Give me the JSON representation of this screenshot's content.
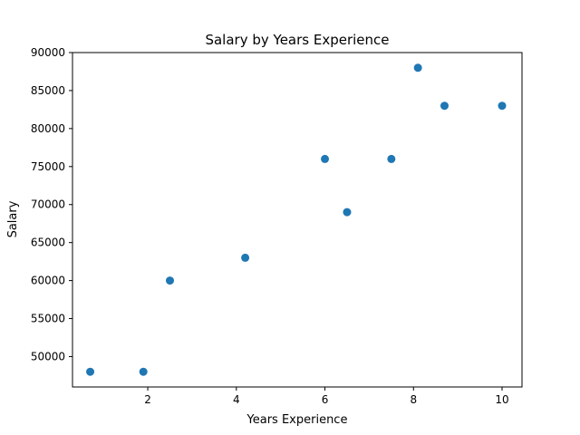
{
  "chart_data": {
    "type": "scatter",
    "title": "Salary by Years Experience",
    "xlabel": "Years Experience",
    "ylabel": "Salary",
    "xlim": [
      0.3,
      10.45
    ],
    "ylim": [
      46000,
      90000
    ],
    "x_ticks": [
      2,
      4,
      6,
      8,
      10
    ],
    "y_ticks": [
      50000,
      55000,
      60000,
      65000,
      70000,
      75000,
      80000,
      85000,
      90000
    ],
    "grid": false,
    "series": [
      {
        "color": "#1f77b4",
        "points": [
          {
            "x": 0.7,
            "y": 48000
          },
          {
            "x": 1.9,
            "y": 48000
          },
          {
            "x": 2.5,
            "y": 60000
          },
          {
            "x": 4.2,
            "y": 63000
          },
          {
            "x": 6.0,
            "y": 76000
          },
          {
            "x": 6.5,
            "y": 69000
          },
          {
            "x": 7.5,
            "y": 76000
          },
          {
            "x": 8.1,
            "y": 88000
          },
          {
            "x": 8.7,
            "y": 83000
          },
          {
            "x": 10.0,
            "y": 83000
          }
        ]
      }
    ]
  }
}
